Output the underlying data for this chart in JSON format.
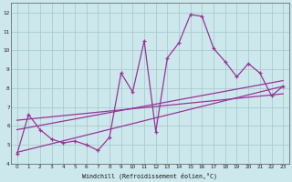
{
  "xlabel": "Windchill (Refroidissement éolien,°C)",
  "bg_color": "#cce8ec",
  "grid_color": "#aacccc",
  "line_color": "#993399",
  "xlim": [
    -0.5,
    23.5
  ],
  "ylim": [
    4,
    12.5
  ],
  "xticks": [
    0,
    1,
    2,
    3,
    4,
    5,
    6,
    7,
    8,
    9,
    10,
    11,
    12,
    13,
    14,
    15,
    16,
    17,
    18,
    19,
    20,
    21,
    22,
    23
  ],
  "yticks": [
    4,
    5,
    6,
    7,
    8,
    9,
    10,
    11,
    12
  ],
  "scatter_x": [
    0,
    1,
    2,
    3,
    4,
    5,
    6,
    7,
    8,
    9,
    10,
    11,
    12,
    13,
    14,
    15,
    16,
    17,
    18,
    19,
    20,
    21,
    22,
    23
  ],
  "scatter_y": [
    4.5,
    6.6,
    5.8,
    5.3,
    5.1,
    5.2,
    5.0,
    4.7,
    5.4,
    8.8,
    7.8,
    10.5,
    5.7,
    9.6,
    10.4,
    11.9,
    11.8,
    10.1,
    9.4,
    8.6,
    9.3,
    8.8,
    7.6,
    8.1
  ],
  "reg_line1_x": [
    0,
    23
  ],
  "reg_line1_y": [
    4.6,
    8.1
  ],
  "reg_line2_x": [
    0,
    23
  ],
  "reg_line2_y": [
    5.8,
    8.4
  ],
  "reg_line3_x": [
    0,
    23
  ],
  "reg_line3_y": [
    6.3,
    7.7
  ]
}
